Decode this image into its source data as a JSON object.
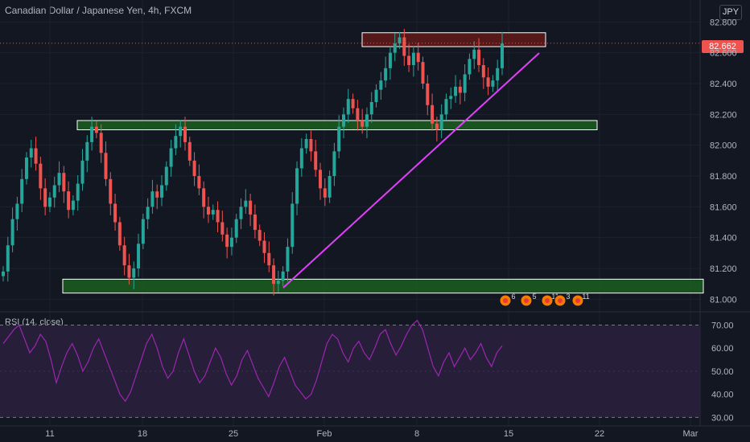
{
  "header": {
    "title": "Canadian Dollar / Japanese Yen, 4h, FXCM",
    "currency_button": "JPY"
  },
  "price_tag": {
    "value": "82.662",
    "color": "#ef5350"
  },
  "rsi_panel": {
    "title": "RSI (14, close)"
  },
  "colors": {
    "up": "#26a69a",
    "down": "#ef5350",
    "trendline": "#e040fb",
    "support_zone": "#1b5e20",
    "resistance_zone": "#5d1a1a",
    "rsi_line": "#9c27b0",
    "rsi_band": "#2a1f3d"
  },
  "event_badges": [
    "6",
    "5",
    "11",
    "3",
    "11"
  ],
  "chart_data": [
    {
      "type": "candlestick",
      "title": "Canadian Dollar / Japanese Yen, 4h, FXCM",
      "x_tick_labels": [
        "11",
        "18",
        "25",
        "Feb",
        "8",
        "15",
        "22",
        "Mar"
      ],
      "y_ticks": [
        81.0,
        81.2,
        81.4,
        81.6,
        81.8,
        82.0,
        82.2,
        82.4,
        82.6,
        82.8
      ],
      "ylim": [
        80.96,
        82.88
      ],
      "last_price": 82.662,
      "series": [
        {
          "name": "price",
          "values": [
            81.18,
            81.35,
            81.52,
            81.62,
            81.78,
            81.92,
            81.98,
            81.88,
            81.72,
            81.6,
            81.66,
            81.74,
            81.82,
            81.7,
            81.58,
            81.64,
            81.75,
            81.9,
            82.02,
            82.12,
            82.08,
            81.95,
            81.78,
            81.62,
            81.5,
            81.35,
            81.22,
            81.14,
            81.2,
            81.36,
            81.52,
            81.6,
            81.7,
            81.66,
            81.74,
            81.86,
            81.98,
            82.06,
            82.12,
            82.02,
            81.9,
            81.8,
            81.72,
            81.6,
            81.55,
            81.58,
            81.5,
            81.42,
            81.34,
            81.4,
            81.52,
            81.6,
            81.64,
            81.55,
            81.45,
            81.38,
            81.3,
            81.22,
            81.1,
            81.12,
            81.18,
            81.34,
            81.62,
            81.85,
            81.98,
            82.04,
            81.96,
            81.84,
            81.72,
            81.66,
            81.8,
            81.96,
            82.12,
            82.2,
            82.3,
            82.24,
            82.16,
            82.12,
            82.2,
            82.28,
            82.36,
            82.42,
            82.5,
            82.6,
            82.66,
            82.7,
            82.58,
            82.52,
            82.6,
            82.54,
            82.4,
            82.26,
            82.14,
            82.1,
            82.2,
            82.3,
            82.32,
            82.38,
            82.34,
            82.46,
            82.56,
            82.62,
            82.52,
            82.44,
            82.38,
            82.42,
            82.5,
            82.66
          ]
        }
      ],
      "support_zones": [
        [
          82.1,
          82.16
        ],
        [
          81.04,
          81.13
        ]
      ],
      "resistance_zone": [
        82.64,
        82.73
      ]
    },
    {
      "type": "line",
      "title": "RSI (14, close)",
      "y_ticks": [
        30.0,
        40.0,
        50.0,
        60.0,
        70.0
      ],
      "ylim": [
        27,
        74
      ],
      "band": [
        30,
        70
      ],
      "series": [
        {
          "name": "RSI",
          "values": [
            62,
            65,
            68,
            70,
            64,
            58,
            61,
            66,
            63,
            55,
            45,
            52,
            58,
            62,
            57,
            50,
            54,
            60,
            64,
            58,
            52,
            46,
            40,
            37,
            41,
            48,
            55,
            62,
            66,
            60,
            52,
            47,
            50,
            58,
            64,
            57,
            50,
            45,
            48,
            54,
            60,
            56,
            49,
            44,
            48,
            55,
            59,
            53,
            47,
            43,
            39,
            45,
            52,
            56,
            50,
            44,
            41,
            38,
            40,
            46,
            54,
            62,
            66,
            64,
            58,
            54,
            60,
            63,
            58,
            55,
            60,
            66,
            68,
            62,
            57,
            61,
            66,
            70,
            72,
            68,
            60,
            52,
            48,
            54,
            58,
            52,
            56,
            60,
            55,
            58,
            62,
            56,
            52,
            58,
            61
          ]
        }
      ]
    }
  ]
}
